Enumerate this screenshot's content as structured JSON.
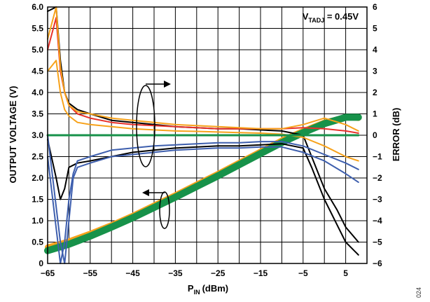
{
  "figure_id": "024",
  "chart_data": {
    "type": "line",
    "xlabel": "P",
    "xlabel_sub": "IN",
    "xlabel_unit": "(dBm)",
    "ylabel_left": "OUTPUT VOLTAGE (V)",
    "ylabel_right": "ERROR (dB)",
    "xlim": [
      -65,
      10
    ],
    "ylim_left": [
      0,
      6
    ],
    "ylim_right": [
      -6,
      6
    ],
    "xticks": [
      "−65",
      "−55",
      "−45",
      "−35",
      "−25",
      "−15",
      "−5",
      "5"
    ],
    "xtick_values": [
      -65,
      -55,
      -45,
      -35,
      -25,
      -15,
      -5,
      5
    ],
    "yticks_left": [
      "0",
      "0.5",
      "1.0",
      "1.5",
      "2.0",
      "2.5",
      "3.0",
      "3.5",
      "4.0",
      "4.5",
      "5.0",
      "5.5",
      "6.0"
    ],
    "yticks_left_values": [
      0,
      0.5,
      1,
      1.5,
      2,
      2.5,
      3,
      3.5,
      4,
      4.5,
      5,
      5.5,
      6
    ],
    "yticks_right": [
      "−6",
      "−5",
      "−4",
      "−3",
      "−2",
      "−1",
      "0",
      "1",
      "2",
      "3",
      "4",
      "5",
      "6"
    ],
    "yticks_right_values": [
      -6,
      -5,
      -4,
      -3,
      -2,
      -1,
      0,
      1,
      2,
      3,
      4,
      5,
      6
    ],
    "grid": true,
    "annotation": {
      "main": "V",
      "sub": "TADJ",
      "rest": " = 0.45V",
      "position": "top-right"
    },
    "colors": {
      "black": "#000000",
      "red": "#e8322b",
      "orange": "#f7a21b",
      "blue": "#3e5fae",
      "green": "#17924a"
    },
    "series": [
      {
        "axis": "left",
        "color": "orange",
        "width": 8,
        "x": [
          -65,
          -60,
          -55,
          -50,
          -45,
          -40,
          -35,
          -30,
          -25,
          -20,
          -15,
          -10,
          -5,
          0,
          5,
          8
        ],
        "y": [
          0.38,
          0.52,
          0.7,
          0.9,
          1.12,
          1.36,
          1.6,
          1.85,
          2.1,
          2.36,
          2.62,
          2.88,
          3.1,
          3.3,
          3.42,
          3.4
        ]
      },
      {
        "axis": "left",
        "color": "green",
        "width": 10,
        "x": [
          -65,
          -60,
          -55,
          -50,
          -45,
          -40,
          -35,
          -30,
          -25,
          -20,
          -15,
          -10,
          -5,
          0,
          5,
          8
        ],
        "y": [
          0.3,
          0.45,
          0.64,
          0.85,
          1.07,
          1.31,
          1.55,
          1.8,
          2.05,
          2.31,
          2.57,
          2.83,
          3.06,
          3.27,
          3.42,
          3.42
        ]
      },
      {
        "axis": "right",
        "color": "black",
        "width": 2,
        "x": [
          -65,
          -63,
          -62,
          -61,
          -60,
          -58,
          -55,
          -50,
          -45,
          -40,
          -35,
          -30,
          -25,
          -20,
          -15,
          -10,
          -5,
          -3,
          0,
          3,
          5,
          8
        ],
        "y": [
          5.8,
          6.0,
          3.5,
          2.0,
          1.5,
          1.2,
          1.0,
          0.7,
          0.6,
          0.5,
          0.4,
          0.35,
          0.3,
          0.3,
          0.25,
          0.2,
          0.0,
          -1.0,
          -2.5,
          -3.5,
          -4.3,
          -5.0
        ]
      },
      {
        "axis": "right",
        "color": "black",
        "width": 2,
        "x": [
          -65,
          -63,
          -62,
          -61,
          -60,
          -58,
          -55,
          -50,
          -45,
          -40,
          -35,
          -30,
          -25,
          -20,
          -15,
          -10,
          -5,
          -3,
          0,
          3,
          5,
          8
        ],
        "y": [
          -0.2,
          -2.0,
          -3.0,
          -2.5,
          -1.5,
          -1.3,
          -1.2,
          -1.0,
          -0.8,
          -0.7,
          -0.6,
          -0.55,
          -0.5,
          -0.5,
          -0.45,
          -0.4,
          -0.6,
          -1.5,
          -3.0,
          -4.2,
          -5.0,
          -5.6
        ]
      },
      {
        "axis": "right",
        "color": "red",
        "width": 2,
        "x": [
          -65,
          -63,
          -62,
          -61,
          -60,
          -58,
          -55,
          -50,
          -45,
          -40,
          -35,
          -30,
          -25,
          -20,
          -15,
          -10,
          -5,
          0,
          5,
          8
        ],
        "y": [
          4.0,
          5.5,
          3.0,
          2.0,
          1.4,
          1.0,
          0.8,
          0.6,
          0.5,
          0.45,
          0.4,
          0.35,
          0.3,
          0.3,
          0.3,
          0.3,
          0.35,
          0.3,
          0.2,
          0.1
        ]
      },
      {
        "axis": "right",
        "color": "orange",
        "width": 2,
        "x": [
          -65,
          -63,
          -62,
          -61,
          -60,
          -58,
          -55,
          -50,
          -45,
          -40,
          -35,
          -30,
          -25,
          -20,
          -15,
          -10,
          -5,
          0,
          5,
          8
        ],
        "y": [
          4.5,
          6.0,
          3.2,
          2.0,
          1.4,
          1.1,
          1.0,
          0.8,
          0.7,
          0.6,
          0.5,
          0.45,
          0.4,
          0.35,
          0.3,
          0.3,
          0.5,
          0.8,
          0.5,
          0.2
        ]
      },
      {
        "axis": "right",
        "color": "orange",
        "width": 2,
        "x": [
          -65,
          -63,
          -62,
          -61,
          -60,
          -58,
          -55,
          -50,
          -45,
          -40,
          -35,
          -30,
          -25,
          -20,
          -15,
          -10,
          -5,
          0,
          5,
          8
        ],
        "y": [
          3.0,
          3.5,
          2.0,
          1.2,
          0.9,
          0.6,
          0.5,
          0.4,
          0.3,
          0.25,
          0.2,
          0.18,
          0.15,
          0.12,
          0.1,
          0.05,
          -0.1,
          -0.5,
          -1.0,
          -1.2
        ]
      },
      {
        "axis": "right",
        "color": "blue",
        "width": 2,
        "x": [
          -65,
          -62,
          -61,
          -60,
          -59,
          -58,
          -55,
          -50,
          -45,
          -40,
          -35,
          -30,
          -25,
          -20,
          -15,
          -10,
          -5,
          0,
          5,
          8
        ],
        "y": [
          0.0,
          -5.0,
          -6.0,
          -4.0,
          -2.0,
          -1.5,
          -1.3,
          -1.0,
          -0.9,
          -0.8,
          -0.7,
          -0.65,
          -0.6,
          -0.6,
          -0.55,
          -0.55,
          -0.8,
          -1.2,
          -1.8,
          -2.2
        ]
      },
      {
        "axis": "right",
        "color": "blue",
        "width": 2,
        "x": [
          -65,
          -62,
          -61,
          -60,
          -59,
          -58,
          -55,
          -50,
          -45,
          -40,
          -35,
          -30,
          -25,
          -20,
          -15,
          -10,
          -5,
          0,
          5,
          8
        ],
        "y": [
          -1.0,
          -6.0,
          -5.0,
          -3.0,
          -1.8,
          -1.2,
          -1.0,
          -0.7,
          -0.6,
          -0.5,
          -0.45,
          -0.4,
          -0.35,
          -0.35,
          -0.3,
          -0.3,
          -0.5,
          -0.9,
          -1.3,
          -1.6
        ]
      },
      {
        "axis": "right",
        "color": "green",
        "width": 3,
        "x": [
          -65,
          8
        ],
        "y": [
          0.0,
          0.0
        ]
      }
    ]
  }
}
